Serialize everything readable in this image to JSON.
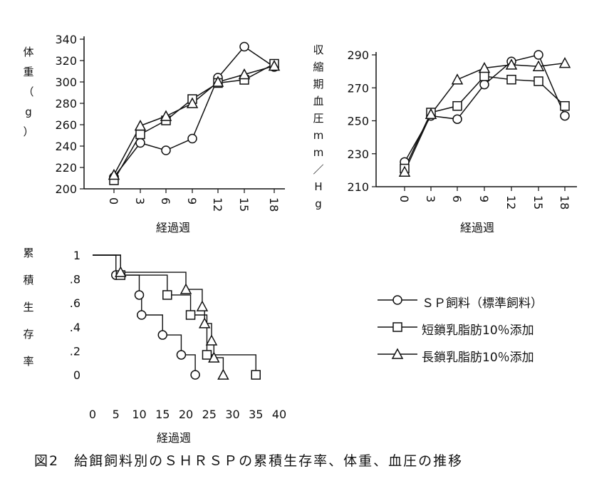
{
  "caption": "図2　給餌飼料別のＳＨＲＳＰの累積生存率、体重、血圧の推移",
  "series_names": [
    "ＳＰ飼料（標準飼料）",
    "短鎖乳脂肪10％添加",
    "長鎖乳脂肪10％添加"
  ],
  "colors": {
    "ink": "#111111",
    "background": "#ffffff"
  },
  "chart_data": [
    {
      "id": "weight",
      "type": "line",
      "ylabel": "体重（g）",
      "xlabel": "経過週",
      "x": [
        0,
        3,
        6,
        9,
        12,
        15,
        18
      ],
      "xticks": [
        "0",
        "3",
        "6",
        "9",
        "12",
        "15",
        "18"
      ],
      "ylim": [
        200,
        340
      ],
      "yticks": [
        200,
        220,
        240,
        260,
        280,
        300,
        320,
        340
      ],
      "series": [
        {
          "name": "ＳＰ飼料（標準飼料）",
          "marker": "circle",
          "values": [
            211,
            243,
            236,
            247,
            304,
            333,
            314
          ]
        },
        {
          "name": "短鎖乳脂肪10％添加",
          "marker": "square",
          "values": [
            208,
            251,
            264,
            284,
            299,
            302,
            317
          ]
        },
        {
          "name": "長鎖乳脂肪10％添加",
          "marker": "triangle",
          "values": [
            213,
            259,
            268,
            280,
            300,
            307,
            315
          ]
        }
      ]
    },
    {
      "id": "blood_pressure",
      "type": "line",
      "ylabel": "収縮期血圧 mm／Hg",
      "xlabel": "経過週",
      "x": [
        0,
        3,
        6,
        9,
        12,
        15,
        18
      ],
      "xticks": [
        "0",
        "3",
        "6",
        "9",
        "12",
        "15",
        "18"
      ],
      "ylim": [
        210,
        290
      ],
      "yticks": [
        210,
        230,
        250,
        270,
        290
      ],
      "series": [
        {
          "name": "ＳＰ飼料（標準飼料）",
          "marker": "circle",
          "values": [
            225,
            253,
            251,
            272,
            286,
            290,
            253
          ]
        },
        {
          "name": "短鎖乳脂肪10％添加",
          "marker": "square",
          "values": [
            221,
            255,
            259,
            277,
            275,
            274,
            259
          ]
        },
        {
          "name": "長鎖乳脂肪10％添加",
          "marker": "triangle",
          "values": [
            219,
            254,
            275,
            282,
            284,
            283,
            285
          ]
        }
      ]
    },
    {
      "id": "survival",
      "type": "step",
      "ylabel": "累積生存率",
      "xlabel": "経過週",
      "xlim": [
        0,
        40
      ],
      "xticks": [
        0,
        5,
        10,
        15,
        20,
        25,
        30,
        35,
        40
      ],
      "ylim": [
        0,
        1
      ],
      "ytick_labels": [
        "0",
        ".2",
        ".4",
        ".6",
        ".8",
        "1"
      ],
      "yticks": [
        0,
        0.2,
        0.4,
        0.6,
        0.8,
        1
      ],
      "series": [
        {
          "name": "ＳＰ飼料（標準飼料）",
          "marker": "circle",
          "start": 0,
          "steps": [
            [
              5,
              0.833
            ],
            [
              10,
              0.667
            ],
            [
              10.5,
              0.5
            ],
            [
              15,
              0.333
            ],
            [
              19,
              0.167
            ],
            [
              22,
              0
            ]
          ]
        },
        {
          "name": "短鎖乳脂肪10％添加",
          "marker": "square",
          "start": 0,
          "steps": [
            [
              6,
              0.833
            ],
            [
              16,
              0.667
            ],
            [
              21,
              0.5
            ],
            [
              24.5,
              0.167
            ],
            [
              35,
              0
            ]
          ]
        },
        {
          "name": "長鎖乳脂肪10％添加",
          "marker": "triangle",
          "start": 0,
          "steps": [
            [
              6,
              0.857
            ],
            [
              20,
              0.714
            ],
            [
              23.5,
              0.571
            ],
            [
              24,
              0.429
            ],
            [
              25.5,
              0.286
            ],
            [
              26,
              0.143
            ],
            [
              28,
              0
            ]
          ]
        }
      ]
    }
  ]
}
